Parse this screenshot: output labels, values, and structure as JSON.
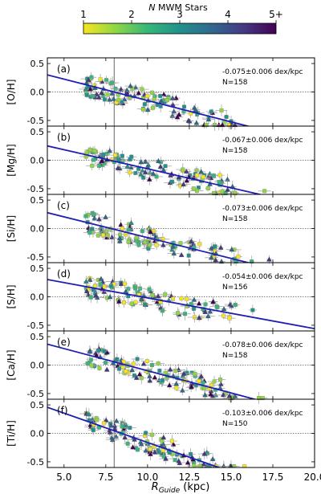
{
  "colorbar": {
    "title_prefix": "N",
    "title_rest": "MWM Stars",
    "ticks": [
      "1",
      "2",
      "3",
      "4",
      "5+"
    ],
    "colors": [
      "#f7e620",
      "#8fd744",
      "#35b779",
      "#21918c",
      "#31688e",
      "#443983",
      "#440154"
    ]
  },
  "chart_data": [
    {
      "type": "scatter",
      "panel_label": "(a)",
      "ylabel": "[O/H]",
      "slope_text": "-0.075±0.006 dex/kpc",
      "n_text": "N=158",
      "fit": {
        "slope": -0.075,
        "intercept": 0.6
      },
      "x_range": [
        4,
        20
      ],
      "y_range": [
        -0.6,
        0.6
      ]
    },
    {
      "type": "scatter",
      "panel_label": "(b)",
      "ylabel": "[Mg/H]",
      "slope_text": "-0.067±0.006 dex/kpc",
      "n_text": "N=158",
      "fit": {
        "slope": -0.067,
        "intercept": 0.52
      },
      "x_range": [
        4,
        20
      ],
      "y_range": [
        -0.6,
        0.6
      ]
    },
    {
      "type": "scatter",
      "panel_label": "(c)",
      "ylabel": "[Si/H]",
      "slope_text": "-0.073±0.006 dex/kpc",
      "n_text": "N=158",
      "fit": {
        "slope": -0.073,
        "intercept": 0.57
      },
      "x_range": [
        4,
        20
      ],
      "y_range": [
        -0.6,
        0.6
      ]
    },
    {
      "type": "scatter",
      "panel_label": "(d)",
      "ylabel": "[S/H]",
      "slope_text": "-0.054±0.006 dex/kpc",
      "n_text": "N=156",
      "fit": {
        "slope": -0.054,
        "intercept": 0.52
      },
      "x_range": [
        4,
        20
      ],
      "y_range": [
        -0.6,
        0.6
      ]
    },
    {
      "type": "scatter",
      "panel_label": "(e)",
      "ylabel": "[Ca/H]",
      "slope_text": "-0.078±0.006 dex/kpc",
      "n_text": "N=158",
      "fit": {
        "slope": -0.078,
        "intercept": 0.68
      },
      "x_range": [
        4,
        20
      ],
      "y_range": [
        -0.6,
        0.6
      ]
    },
    {
      "type": "scatter",
      "panel_label": "(f)",
      "ylabel": "[Ti/H]",
      "slope_text": "-0.103±0.006 dex/kpc",
      "n_text": "N=150",
      "fit": {
        "slope": -0.103,
        "intercept": 0.87
      },
      "x_range": [
        4,
        20
      ],
      "y_range": [
        -0.6,
        0.6
      ]
    }
  ],
  "axes": {
    "xlabel_main": "R",
    "xlabel_sub": "Guide",
    "xlabel_unit": " (kpc)",
    "x_ticks": [
      "5.0",
      "7.5",
      "10.0",
      "12.5",
      "15.0",
      "17.5",
      "20.0"
    ],
    "x_tick_values": [
      5,
      7.5,
      10,
      12.5,
      15,
      17.5,
      20
    ],
    "y_ticks": [
      "0.5",
      "0.0",
      "-0.5"
    ],
    "y_tick_values": [
      0.5,
      0,
      -0.5
    ],
    "solar_radius": 8.0
  }
}
